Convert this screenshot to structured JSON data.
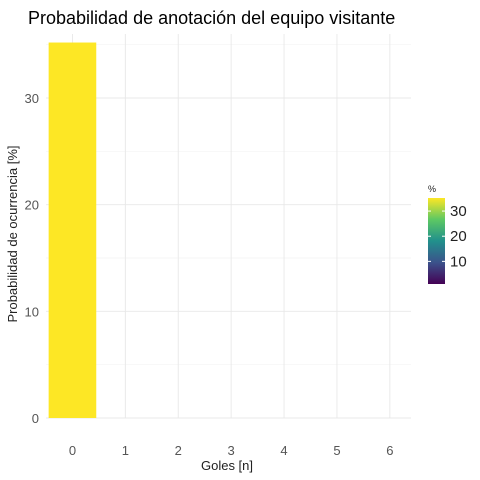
{
  "chart_data": {
    "type": "bar",
    "title": "Probabilidad de anotación del equipo visitante",
    "xlabel": "Goles [n]",
    "ylabel": "Probabilidad de ocurrencia [%]",
    "categories": [
      "0",
      "1",
      "2",
      "3",
      "4",
      "5",
      "6"
    ],
    "values": [
      35.2,
      0,
      0,
      0,
      0,
      0,
      0
    ],
    "ylim": [
      0,
      36
    ],
    "yticks": [
      0,
      10,
      20,
      30
    ],
    "grid": true,
    "fill_color": "#FDE725",
    "legend": {
      "title": "%",
      "position": "right",
      "ticks": [
        10,
        20,
        30
      ],
      "range": [
        1,
        35.2
      ],
      "colormap": [
        "#440154",
        "#3B528B",
        "#21908C",
        "#5DC863",
        "#FDE725"
      ]
    }
  }
}
